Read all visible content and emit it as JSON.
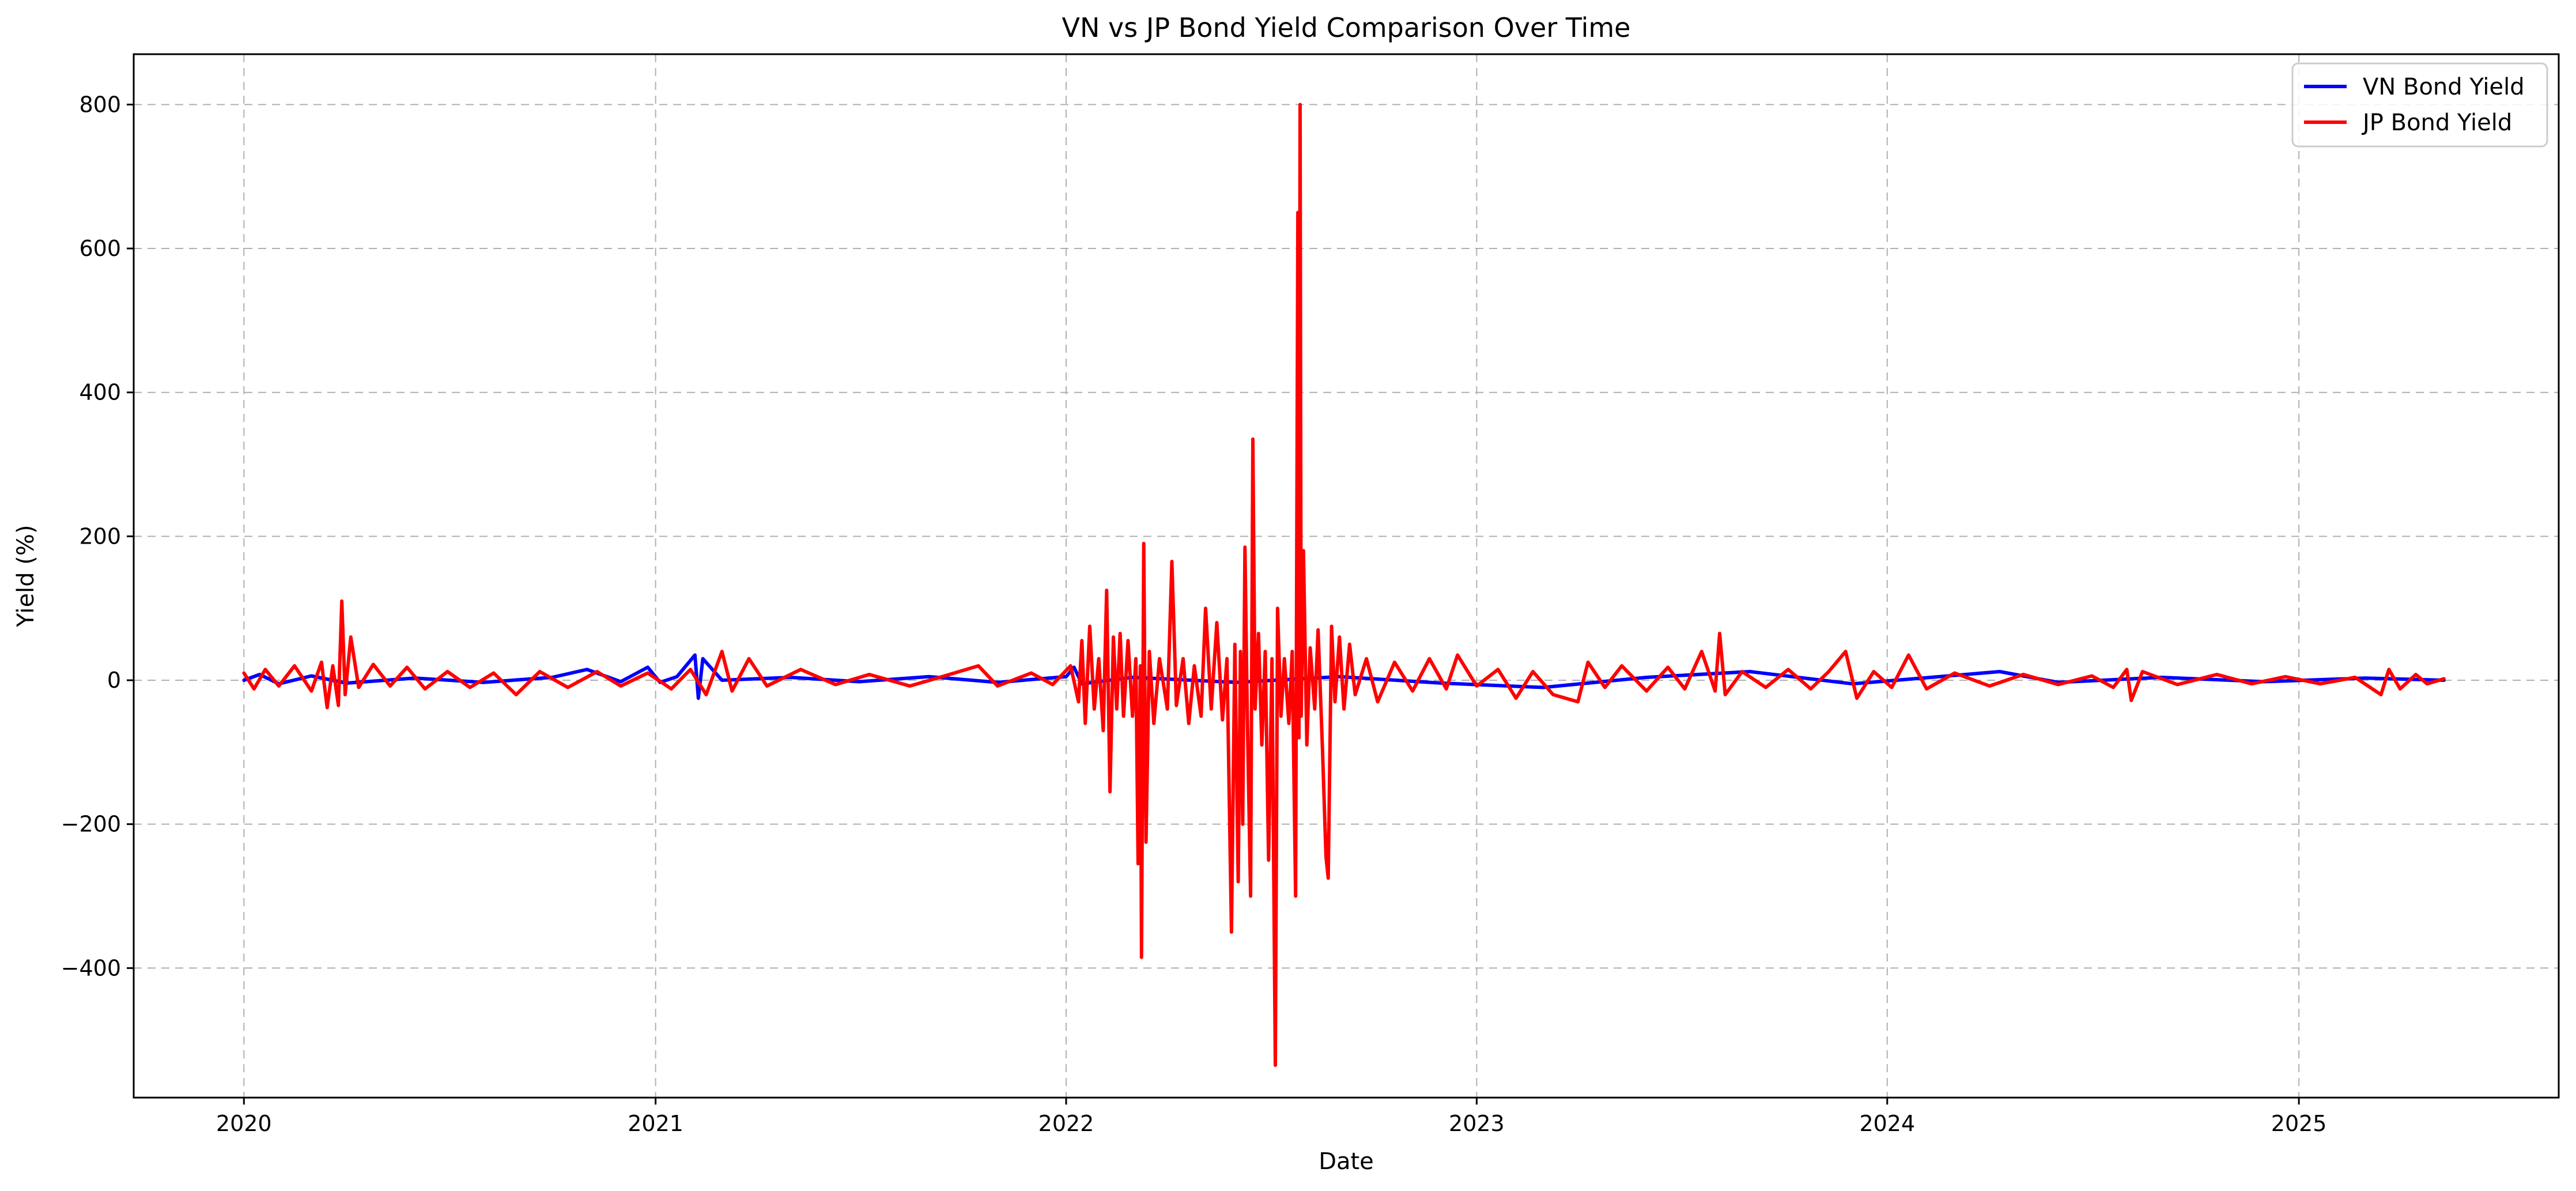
{
  "chart_data": {
    "type": "line",
    "title": "VN vs JP Bond Yield Comparison Over Time",
    "xlabel": "Date",
    "ylabel": "Yield (%)",
    "xlim": [
      "2019-09-25",
      "2025-08-20"
    ],
    "ylim": [
      -580,
      870
    ],
    "x_ticks": [
      "2020",
      "2021",
      "2022",
      "2023",
      "2024",
      "2025"
    ],
    "y_ticks": [
      -400,
      -200,
      0,
      200,
      400,
      600,
      800
    ],
    "y_tick_labels": [
      "−400",
      "−200",
      "0",
      "200",
      "400",
      "600",
      "800"
    ],
    "grid": true,
    "legend_position": "top-right",
    "series": [
      {
        "name": "VN Bond Yield",
        "color": "#0000ff",
        "points": [
          [
            "2020-01-01",
            0
          ],
          [
            "2020-01-15",
            8
          ],
          [
            "2020-02-01",
            -5
          ],
          [
            "2020-03-01",
            6
          ],
          [
            "2020-04-01",
            -4
          ],
          [
            "2020-06-01",
            3
          ],
          [
            "2020-08-01",
            -3
          ],
          [
            "2020-10-01",
            4
          ],
          [
            "2020-11-01",
            15
          ],
          [
            "2020-12-01",
            -2
          ],
          [
            "2020-12-25",
            18
          ],
          [
            "2021-01-05",
            -3
          ],
          [
            "2021-01-20",
            5
          ],
          [
            "2021-02-05",
            35
          ],
          [
            "2021-02-08",
            -25
          ],
          [
            "2021-02-12",
            30
          ],
          [
            "2021-03-01",
            0
          ],
          [
            "2021-05-01",
            4
          ],
          [
            "2021-07-01",
            -2
          ],
          [
            "2021-09-01",
            5
          ],
          [
            "2021-11-01",
            -3
          ],
          [
            "2022-01-01",
            5
          ],
          [
            "2022-01-08",
            18
          ],
          [
            "2022-01-15",
            -5
          ],
          [
            "2022-03-01",
            4
          ],
          [
            "2022-06-01",
            -3
          ],
          [
            "2022-09-01",
            5
          ],
          [
            "2022-12-01",
            -4
          ],
          [
            "2023-03-01",
            -10
          ],
          [
            "2023-06-01",
            4
          ],
          [
            "2023-09-01",
            12
          ],
          [
            "2023-12-01",
            -5
          ],
          [
            "2024-02-01",
            3
          ],
          [
            "2024-04-10",
            12
          ],
          [
            "2024-06-01",
            -3
          ],
          [
            "2024-09-01",
            4
          ],
          [
            "2024-12-01",
            -2
          ],
          [
            "2025-03-01",
            3
          ],
          [
            "2025-05-10",
            0
          ]
        ]
      },
      {
        "name": "JP Bond Yield",
        "color": "#ff0000",
        "points": [
          [
            "2020-01-01",
            10
          ],
          [
            "2020-01-10",
            -12
          ],
          [
            "2020-01-20",
            15
          ],
          [
            "2020-02-01",
            -8
          ],
          [
            "2020-02-15",
            20
          ],
          [
            "2020-03-01",
            -15
          ],
          [
            "2020-03-10",
            25
          ],
          [
            "2020-03-15",
            -38
          ],
          [
            "2020-03-20",
            20
          ],
          [
            "2020-03-25",
            -35
          ],
          [
            "2020-03-28",
            110
          ],
          [
            "2020-03-31",
            -20
          ],
          [
            "2020-04-05",
            60
          ],
          [
            "2020-04-12",
            -10
          ],
          [
            "2020-04-25",
            22
          ],
          [
            "2020-05-10",
            -8
          ],
          [
            "2020-05-25",
            18
          ],
          [
            "2020-06-10",
            -12
          ],
          [
            "2020-06-30",
            12
          ],
          [
            "2020-07-20",
            -10
          ],
          [
            "2020-08-10",
            10
          ],
          [
            "2020-08-30",
            -20
          ],
          [
            "2020-09-20",
            12
          ],
          [
            "2020-10-15",
            -10
          ],
          [
            "2020-11-10",
            12
          ],
          [
            "2020-12-01",
            -8
          ],
          [
            "2020-12-25",
            10
          ],
          [
            "2021-01-15",
            -12
          ],
          [
            "2021-02-01",
            15
          ],
          [
            "2021-02-15",
            -20
          ],
          [
            "2021-03-01",
            40
          ],
          [
            "2021-03-10",
            -15
          ],
          [
            "2021-03-25",
            30
          ],
          [
            "2021-04-10",
            -8
          ],
          [
            "2021-05-10",
            15
          ],
          [
            "2021-06-10",
            -6
          ],
          [
            "2021-07-10",
            8
          ],
          [
            "2021-08-15",
            -8
          ],
          [
            "2021-09-15",
            6
          ],
          [
            "2021-10-15",
            20
          ],
          [
            "2021-11-01",
            -8
          ],
          [
            "2021-12-01",
            10
          ],
          [
            "2021-12-20",
            -6
          ],
          [
            "2022-01-05",
            20
          ],
          [
            "2022-01-12",
            -30
          ],
          [
            "2022-01-15",
            55
          ],
          [
            "2022-01-18",
            -60
          ],
          [
            "2022-01-22",
            75
          ],
          [
            "2022-01-26",
            -40
          ],
          [
            "2022-01-30",
            30
          ],
          [
            "2022-02-03",
            -70
          ],
          [
            "2022-02-06",
            125
          ],
          [
            "2022-02-09",
            -155
          ],
          [
            "2022-02-12",
            60
          ],
          [
            "2022-02-15",
            -40
          ],
          [
            "2022-02-18",
            65
          ],
          [
            "2022-02-21",
            -50
          ],
          [
            "2022-02-25",
            55
          ],
          [
            "2022-03-01",
            -50
          ],
          [
            "2022-03-04",
            30
          ],
          [
            "2022-03-06",
            -255
          ],
          [
            "2022-03-08",
            20
          ],
          [
            "2022-03-09",
            -385
          ],
          [
            "2022-03-10",
            -100
          ],
          [
            "2022-03-11",
            190
          ],
          [
            "2022-03-13",
            -225
          ],
          [
            "2022-03-16",
            40
          ],
          [
            "2022-03-20",
            -60
          ],
          [
            "2022-03-25",
            30
          ],
          [
            "2022-04-01",
            -40
          ],
          [
            "2022-04-05",
            165
          ],
          [
            "2022-04-09",
            -35
          ],
          [
            "2022-04-15",
            30
          ],
          [
            "2022-04-20",
            -60
          ],
          [
            "2022-04-25",
            20
          ],
          [
            "2022-05-01",
            -50
          ],
          [
            "2022-05-05",
            100
          ],
          [
            "2022-05-10",
            -40
          ],
          [
            "2022-05-15",
            80
          ],
          [
            "2022-05-20",
            -55
          ],
          [
            "2022-05-24",
            30
          ],
          [
            "2022-05-28",
            -350
          ],
          [
            "2022-05-31",
            50
          ],
          [
            "2022-06-03",
            -280
          ],
          [
            "2022-06-05",
            40
          ],
          [
            "2022-06-07",
            -200
          ],
          [
            "2022-06-09",
            185
          ],
          [
            "2022-06-11",
            -40
          ],
          [
            "2022-06-14",
            -300
          ],
          [
            "2022-06-16",
            335
          ],
          [
            "2022-06-18",
            -40
          ],
          [
            "2022-06-21",
            65
          ],
          [
            "2022-06-24",
            -90
          ],
          [
            "2022-06-27",
            40
          ],
          [
            "2022-06-30",
            -250
          ],
          [
            "2022-07-03",
            30
          ],
          [
            "2022-07-06",
            -535
          ],
          [
            "2022-07-08",
            100
          ],
          [
            "2022-07-11",
            -50
          ],
          [
            "2022-07-14",
            30
          ],
          [
            "2022-07-18",
            -60
          ],
          [
            "2022-07-21",
            40
          ],
          [
            "2022-07-24",
            -300
          ],
          [
            "2022-07-26",
            650
          ],
          [
            "2022-07-27",
            -80
          ],
          [
            "2022-07-28",
            800
          ],
          [
            "2022-07-29",
            -50
          ],
          [
            "2022-07-31",
            180
          ],
          [
            "2022-08-03",
            -90
          ],
          [
            "2022-08-06",
            45
          ],
          [
            "2022-08-10",
            -40
          ],
          [
            "2022-08-13",
            70
          ],
          [
            "2022-08-17",
            -100
          ],
          [
            "2022-08-20",
            -245
          ],
          [
            "2022-08-22",
            -275
          ],
          [
            "2022-08-25",
            75
          ],
          [
            "2022-08-28",
            -30
          ],
          [
            "2022-09-01",
            60
          ],
          [
            "2022-09-05",
            -40
          ],
          [
            "2022-09-10",
            50
          ],
          [
            "2022-09-15",
            -20
          ],
          [
            "2022-09-25",
            30
          ],
          [
            "2022-10-05",
            -30
          ],
          [
            "2022-10-20",
            25
          ],
          [
            "2022-11-05",
            -15
          ],
          [
            "2022-11-20",
            30
          ],
          [
            "2022-12-05",
            -12
          ],
          [
            "2022-12-15",
            35
          ],
          [
            "2023-01-01",
            -8
          ],
          [
            "2023-01-20",
            15
          ],
          [
            "2023-02-05",
            -25
          ],
          [
            "2023-02-20",
            12
          ],
          [
            "2023-03-10",
            -20
          ],
          [
            "2023-04-01",
            -30
          ],
          [
            "2023-04-10",
            25
          ],
          [
            "2023-04-25",
            -10
          ],
          [
            "2023-05-10",
            20
          ],
          [
            "2023-06-01",
            -15
          ],
          [
            "2023-06-20",
            18
          ],
          [
            "2023-07-05",
            -12
          ],
          [
            "2023-07-20",
            40
          ],
          [
            "2023-08-01",
            -15
          ],
          [
            "2023-08-05",
            65
          ],
          [
            "2023-08-10",
            -20
          ],
          [
            "2023-08-25",
            12
          ],
          [
            "2023-09-15",
            -10
          ],
          [
            "2023-10-05",
            15
          ],
          [
            "2023-10-25",
            -12
          ],
          [
            "2023-11-10",
            12
          ],
          [
            "2023-11-25",
            40
          ],
          [
            "2023-12-05",
            -25
          ],
          [
            "2023-12-20",
            12
          ],
          [
            "2024-01-05",
            -10
          ],
          [
            "2024-01-20",
            35
          ],
          [
            "2024-02-05",
            -12
          ],
          [
            "2024-03-01",
            10
          ],
          [
            "2024-04-01",
            -8
          ],
          [
            "2024-05-01",
            8
          ],
          [
            "2024-06-01",
            -6
          ],
          [
            "2024-07-01",
            6
          ],
          [
            "2024-07-20",
            -10
          ],
          [
            "2024-08-01",
            15
          ],
          [
            "2024-08-05",
            -28
          ],
          [
            "2024-08-15",
            12
          ],
          [
            "2024-09-15",
            -6
          ],
          [
            "2024-10-20",
            8
          ],
          [
            "2024-11-20",
            -5
          ],
          [
            "2024-12-20",
            5
          ],
          [
            "2025-01-20",
            -5
          ],
          [
            "2025-02-20",
            4
          ],
          [
            "2025-03-15",
            -20
          ],
          [
            "2025-03-22",
            15
          ],
          [
            "2025-04-01",
            -12
          ],
          [
            "2025-04-15",
            8
          ],
          [
            "2025-04-25",
            -5
          ],
          [
            "2025-05-10",
            2
          ]
        ]
      }
    ]
  }
}
